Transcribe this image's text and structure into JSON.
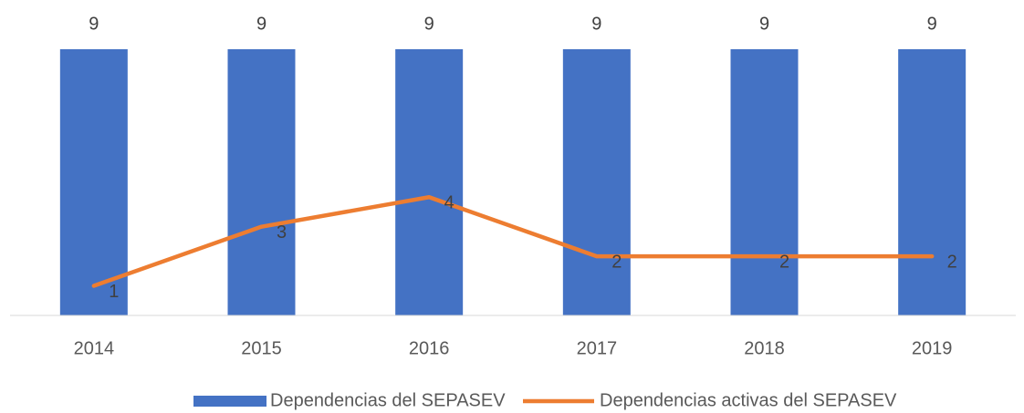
{
  "chart_data": {
    "type": "bar_line",
    "categories": [
      "2014",
      "2015",
      "2016",
      "2017",
      "2018",
      "2019"
    ],
    "series": [
      {
        "name": "Dependencias del SEPASEV",
        "type": "bar",
        "color": "#4472c4",
        "values": [
          9,
          9,
          9,
          9,
          9,
          9
        ]
      },
      {
        "name": "Dependencias activas del SEPASEV",
        "type": "line",
        "color": "#ed7d31",
        "values": [
          1,
          3,
          4,
          2,
          2,
          2
        ]
      }
    ],
    "ylim": [
      0,
      9
    ],
    "legend": "bottom"
  }
}
